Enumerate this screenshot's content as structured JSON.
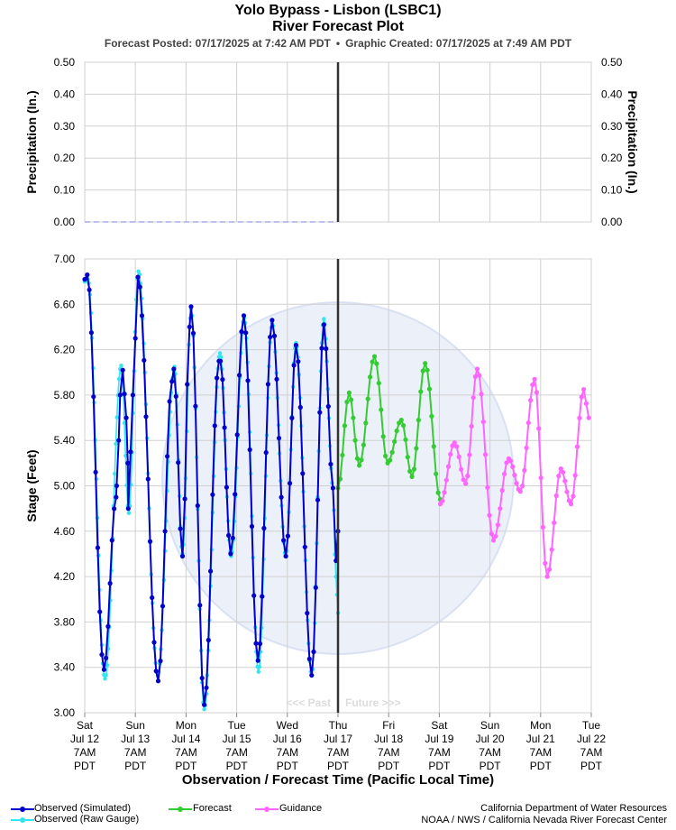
{
  "header": {
    "title_line1": "Yolo Bypass - Lisbon (LSBC1)",
    "title_line2": "River Forecast Plot",
    "forecast_posted": "Forecast Posted: 07/17/2025 at 7:42 AM PDT",
    "separator": "•",
    "graphic_created": "Graphic Created: 07/17/2025 at 7:49 AM PDT"
  },
  "colors": {
    "observed_simulated": "#0000cc",
    "observed_raw": "#33e5f0",
    "forecast": "#33cc33",
    "guidance": "#ff66ff",
    "now_line": "#333333",
    "grid": "#d0d0d0",
    "watermark": "#dce3f4"
  },
  "x_axis": {
    "label": "Observation / Forecast Time (Pacific Local Time)",
    "ticks": [
      {
        "day": "Sat",
        "date": "Jul 12",
        "time": "7AM",
        "tz": "PDT"
      },
      {
        "day": "Sun",
        "date": "Jul 13",
        "time": "7AM",
        "tz": "PDT"
      },
      {
        "day": "Mon",
        "date": "Jul 14",
        "time": "7AM",
        "tz": "PDT"
      },
      {
        "day": "Tue",
        "date": "Jul 15",
        "time": "7AM",
        "tz": "PDT"
      },
      {
        "day": "Wed",
        "date": "Jul 16",
        "time": "7AM",
        "tz": "PDT"
      },
      {
        "day": "Thu",
        "date": "Jul 17",
        "time": "7AM",
        "tz": "PDT"
      },
      {
        "day": "Fri",
        "date": "Jul 18",
        "time": "7AM",
        "tz": "PDT"
      },
      {
        "day": "Sat",
        "date": "Jul 19",
        "time": "7AM",
        "tz": "PDT"
      },
      {
        "day": "Sun",
        "date": "Jul 20",
        "time": "7AM",
        "tz": "PDT"
      },
      {
        "day": "Mon",
        "date": "Jul 21",
        "time": "7AM",
        "tz": "PDT"
      },
      {
        "day": "Tue",
        "date": "Jul 22",
        "time": "7AM",
        "tz": "PDT"
      }
    ],
    "past_label": "<<< Past",
    "future_label": "Future >>>"
  },
  "legend": {
    "observed_simulated": "Observed (Simulated)",
    "observed_raw": "Observed (Raw Gauge)",
    "forecast": "Forecast",
    "guidance": "Guidance"
  },
  "credits": {
    "line1": "California Department of Water Resources",
    "line2": "NOAA / NWS / California Nevada River Forecast Center"
  },
  "chart_data": [
    {
      "type": "line",
      "ylabel": "Precipitation (In.)",
      "ylabel_right": "Precipitation (In.)",
      "ylim": [
        0,
        0.5
      ],
      "yticks": [
        "0.00",
        "0.10",
        "0.20",
        "0.30",
        "0.40",
        "0.50"
      ],
      "xlim_days": [
        0,
        10
      ],
      "grid": true,
      "series": [
        {
          "values_x_days": [
            0,
            5
          ],
          "values": [
            0,
            0
          ],
          "style": "dashed"
        }
      ]
    },
    {
      "type": "line",
      "ylabel": "Stage (Feet)",
      "ylim": [
        3.0,
        7.0
      ],
      "yticks": [
        "3.00",
        "3.40",
        "3.80",
        "4.20",
        "4.60",
        "5.00",
        "5.40",
        "5.80",
        "6.20",
        "6.60",
        "7.00"
      ],
      "xlim_days": [
        0,
        10
      ],
      "now_day": 5,
      "grid": true,
      "series": [
        {
          "name": "Observed (Simulated)",
          "extrema": [
            [
              0.0,
              6.82
            ],
            [
              0.05,
              6.86
            ],
            [
              0.38,
              3.38
            ],
            [
              0.62,
              4.9
            ],
            [
              0.63,
              5.0
            ],
            [
              0.67,
              5.4
            ],
            [
              0.7,
              5.8
            ],
            [
              0.75,
              6.02
            ],
            [
              0.82,
              5.6
            ],
            [
              0.85,
              5.2
            ],
            [
              0.85,
              5.2
            ],
            [
              0.86,
              4.8
            ],
            [
              0.95,
              5.8
            ],
            [
              1.0,
              6.3
            ],
            [
              1.05,
              6.84
            ],
            [
              1.45,
              3.28
            ],
            [
              1.72,
              5.92
            ],
            [
              1.76,
              6.03
            ],
            [
              1.93,
              4.38
            ],
            [
              2.07,
              6.4
            ],
            [
              2.1,
              6.58
            ],
            [
              2.36,
              3.07
            ],
            [
              2.65,
              6.1
            ],
            [
              2.68,
              6.1
            ],
            [
              2.88,
              4.4
            ],
            [
              3.14,
              6.5
            ],
            [
              3.42,
              3.46
            ],
            [
              3.7,
              6.46
            ],
            [
              3.97,
              4.38
            ],
            [
              4.17,
              6.24
            ],
            [
              4.48,
              3.33
            ],
            [
              4.72,
              6.42
            ],
            [
              4.9,
              4.98
            ],
            [
              4.96,
              4.34
            ],
            [
              5.0,
              4.6
            ]
          ]
        },
        {
          "name": "Observed (Raw Gauge)",
          "extrema": [
            [
              0.0,
              6.8
            ],
            [
              0.06,
              6.82
            ],
            [
              0.4,
              3.3
            ],
            [
              0.72,
              6.06
            ],
            [
              0.87,
              4.76
            ],
            [
              1.06,
              6.89
            ],
            [
              1.44,
              3.33
            ],
            [
              1.77,
              6.05
            ],
            [
              1.93,
              4.4
            ],
            [
              2.1,
              6.56
            ],
            [
              2.36,
              3.03
            ],
            [
              2.67,
              6.17
            ],
            [
              2.89,
              4.38
            ],
            [
              3.15,
              6.48
            ],
            [
              3.43,
              3.36
            ],
            [
              3.7,
              6.44
            ],
            [
              3.97,
              4.38
            ],
            [
              4.17,
              6.26
            ],
            [
              4.48,
              3.33
            ],
            [
              4.72,
              6.47
            ],
            [
              4.9,
              4.98
            ],
            [
              4.96,
              4.2
            ],
            [
              5.0,
              3.88
            ]
          ]
        },
        {
          "name": "Forecast",
          "extrema": [
            [
              5.0,
              4.98
            ],
            [
              5.22,
              5.82
            ],
            [
              5.42,
              5.18
            ],
            [
              5.72,
              6.14
            ],
            [
              5.98,
              5.2
            ],
            [
              6.25,
              5.58
            ],
            [
              6.46,
              5.08
            ],
            [
              6.72,
              6.08
            ],
            [
              7.02,
              4.88
            ]
          ]
        },
        {
          "name": "Guidance",
          "extrema": [
            [
              7.02,
              4.84
            ],
            [
              7.3,
              5.38
            ],
            [
              7.52,
              5.02
            ],
            [
              7.75,
              6.03
            ],
            [
              8.07,
              4.52
            ],
            [
              8.37,
              5.24
            ],
            [
              8.6,
              4.95
            ],
            [
              8.88,
              5.94
            ],
            [
              9.13,
              4.2
            ],
            [
              9.4,
              5.15
            ],
            [
              9.6,
              4.84
            ],
            [
              9.85,
              5.85
            ],
            [
              9.95,
              5.6
            ]
          ]
        }
      ]
    }
  ]
}
